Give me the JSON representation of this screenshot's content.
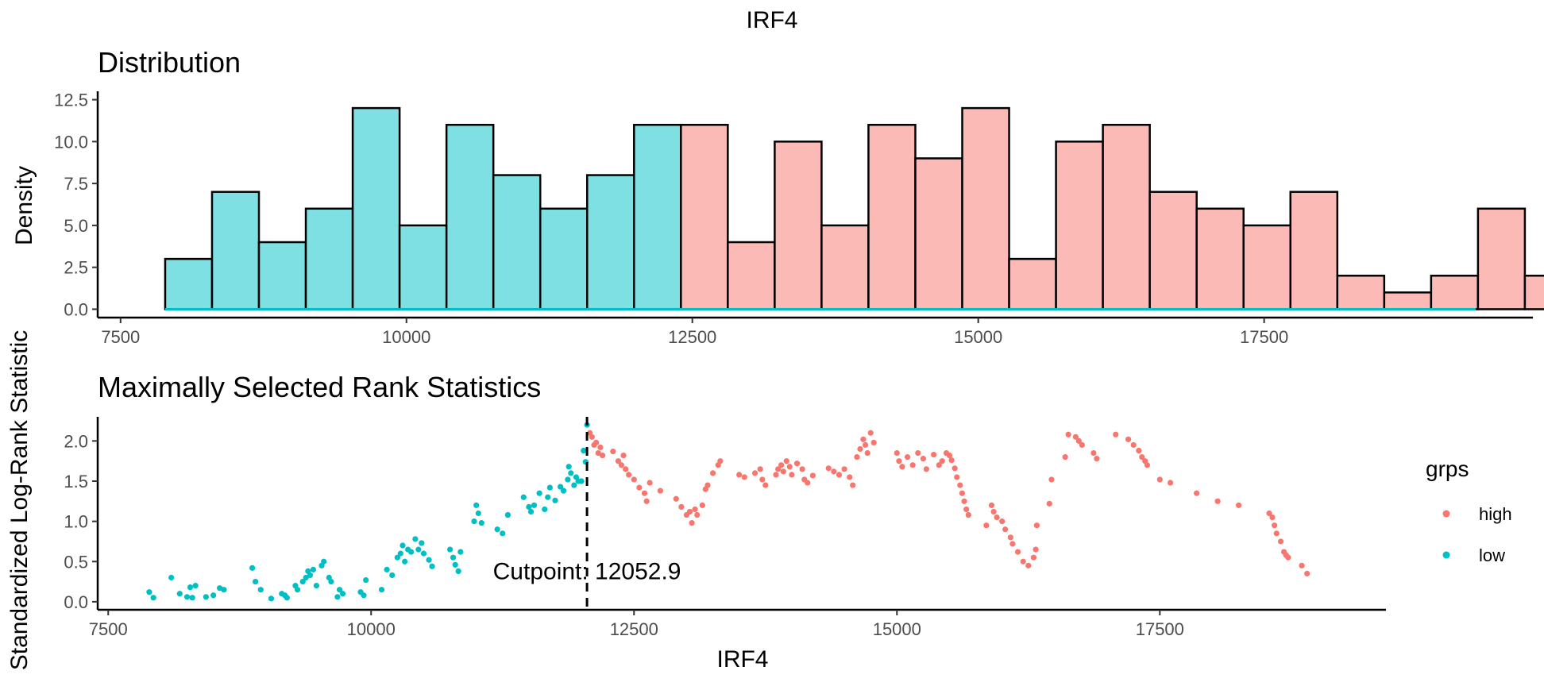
{
  "figure_title": "IRF4",
  "colors": {
    "low": "#00BFC4",
    "high": "#F8766D",
    "low_fill": "#7FE0E3",
    "high_fill": "#FBBAB5"
  },
  "chart_data": [
    {
      "type": "bar",
      "title": "Distribution",
      "xlabel": "",
      "ylabel": "Density",
      "xlim": [
        7300,
        19850
      ],
      "ylim": [
        -0.5,
        13.0
      ],
      "x_ticks": [
        7500,
        10000,
        12500,
        15000,
        17500
      ],
      "y_ticks": [
        0.0,
        2.5,
        5.0,
        7.5,
        10.0,
        12.5
      ],
      "x_tick_labels": [
        "7500",
        "10000",
        "12500",
        "15000",
        "17500"
      ],
      "y_tick_labels": [
        "0.0",
        "2.5",
        "5.0",
        "7.5",
        "10.0",
        "12.5"
      ],
      "bin_width": 410,
      "bins": [
        {
          "start": 7890,
          "value": 3,
          "group": "low"
        },
        {
          "start": 8300,
          "value": 7,
          "group": "low"
        },
        {
          "start": 8710,
          "value": 4,
          "group": "low"
        },
        {
          "start": 9120,
          "value": 6,
          "group": "low"
        },
        {
          "start": 9530,
          "value": 12,
          "group": "low"
        },
        {
          "start": 9940,
          "value": 5,
          "group": "low"
        },
        {
          "start": 10350,
          "value": 11,
          "group": "low"
        },
        {
          "start": 10760,
          "value": 8,
          "group": "low"
        },
        {
          "start": 11170,
          "value": 6,
          "group": "low"
        },
        {
          "start": 11580,
          "value": 8,
          "group": "low"
        },
        {
          "start": 11990,
          "value": 11,
          "group": "low"
        },
        {
          "start": 12400,
          "value": 11,
          "group": "high"
        },
        {
          "start": 12810,
          "value": 4,
          "group": "high"
        },
        {
          "start": 13220,
          "value": 10,
          "group": "high"
        },
        {
          "start": 13630,
          "value": 5,
          "group": "high"
        },
        {
          "start": 14040,
          "value": 11,
          "group": "high"
        },
        {
          "start": 14450,
          "value": 9,
          "group": "high"
        },
        {
          "start": 14860,
          "value": 12,
          "group": "high"
        },
        {
          "start": 15270,
          "value": 3,
          "group": "high"
        },
        {
          "start": 15680,
          "value": 10,
          "group": "high"
        },
        {
          "start": 16090,
          "value": 11,
          "group": "high"
        },
        {
          "start": 16500,
          "value": 7,
          "group": "high"
        },
        {
          "start": 16910,
          "value": 6,
          "group": "high"
        },
        {
          "start": 17320,
          "value": 5,
          "group": "high"
        },
        {
          "start": 17730,
          "value": 7,
          "group": "high"
        },
        {
          "start": 18140,
          "value": 2,
          "group": "high"
        },
        {
          "start": 18550,
          "value": 1,
          "group": "high"
        },
        {
          "start": 18960,
          "value": 2,
          "group": "high"
        },
        {
          "start": 19370,
          "value": 6,
          "group": "high"
        },
        {
          "start": 19780,
          "value": 2,
          "group": "high"
        }
      ],
      "baseline": {
        "from": 7890,
        "to": 19350
      }
    },
    {
      "type": "scatter",
      "title": "Maximally Selected Rank Statistics",
      "xlabel": "IRF4",
      "ylabel": "Standardized Log-Rank Statistic",
      "xlim": [
        7400,
        19650
      ],
      "ylim": [
        -0.1,
        2.3
      ],
      "x_ticks": [
        7500,
        10000,
        12500,
        15000,
        17500
      ],
      "y_ticks": [
        0.0,
        0.5,
        1.0,
        1.5,
        2.0
      ],
      "x_tick_labels": [
        "7500",
        "10000",
        "12500",
        "15000",
        "17500"
      ],
      "y_tick_labels": [
        "0.0",
        "0.5",
        "1.0",
        "1.5",
        "2.0"
      ],
      "cutpoint": 12052.9,
      "cutpoint_label": "Cutpoint: 12052.9",
      "legend": {
        "title": "grps",
        "entries": [
          {
            "name": "high",
            "group": "high"
          },
          {
            "name": "low",
            "group": "low"
          }
        ]
      },
      "series": [
        {
          "name": "low",
          "points": [
            [
              7890,
              0.12
            ],
            [
              7930,
              0.05
            ],
            [
              8100,
              0.3
            ],
            [
              8180,
              0.1
            ],
            [
              8250,
              0.06
            ],
            [
              8280,
              0.18
            ],
            [
              8300,
              0.05
            ],
            [
              8330,
              0.2
            ],
            [
              8430,
              0.06
            ],
            [
              8500,
              0.08
            ],
            [
              8560,
              0.17
            ],
            [
              8600,
              0.15
            ],
            [
              8870,
              0.42
            ],
            [
              8900,
              0.25
            ],
            [
              8950,
              0.15
            ],
            [
              9050,
              0.04
            ],
            [
              9150,
              0.1
            ],
            [
              9180,
              0.08
            ],
            [
              9200,
              0.05
            ],
            [
              9280,
              0.2
            ],
            [
              9300,
              0.15
            ],
            [
              9350,
              0.25
            ],
            [
              9380,
              0.3
            ],
            [
              9400,
              0.38
            ],
            [
              9420,
              0.33
            ],
            [
              9450,
              0.4
            ],
            [
              9480,
              0.2
            ],
            [
              9530,
              0.45
            ],
            [
              9550,
              0.5
            ],
            [
              9600,
              0.3
            ],
            [
              9620,
              0.25
            ],
            [
              9680,
              0.06
            ],
            [
              9700,
              0.15
            ],
            [
              9730,
              0.1
            ],
            [
              9900,
              0.12
            ],
            [
              9930,
              0.08
            ],
            [
              9950,
              0.27
            ],
            [
              10100,
              0.15
            ],
            [
              10150,
              0.4
            ],
            [
              10200,
              0.33
            ],
            [
              10250,
              0.55
            ],
            [
              10280,
              0.6
            ],
            [
              10300,
              0.7
            ],
            [
              10320,
              0.5
            ],
            [
              10350,
              0.65
            ],
            [
              10380,
              0.62
            ],
            [
              10420,
              0.78
            ],
            [
              10450,
              0.65
            ],
            [
              10480,
              0.73
            ],
            [
              10500,
              0.6
            ],
            [
              10550,
              0.52
            ],
            [
              10580,
              0.44
            ],
            [
              10750,
              0.65
            ],
            [
              10780,
              0.55
            ],
            [
              10800,
              0.46
            ],
            [
              10830,
              0.38
            ],
            [
              10850,
              0.62
            ],
            [
              10980,
              1.0
            ],
            [
              11000,
              1.2
            ],
            [
              11020,
              1.1
            ],
            [
              11050,
              0.98
            ],
            [
              11200,
              0.9
            ],
            [
              11250,
              0.85
            ],
            [
              11300,
              1.08
            ],
            [
              11450,
              1.3
            ],
            [
              11500,
              1.18
            ],
            [
              11520,
              1.12
            ],
            [
              11550,
              1.2
            ],
            [
              11600,
              1.35
            ],
            [
              11650,
              1.15
            ],
            [
              11680,
              1.3
            ],
            [
              11700,
              1.42
            ],
            [
              11750,
              1.26
            ],
            [
              11800,
              1.43
            ],
            [
              11830,
              1.38
            ],
            [
              11870,
              1.52
            ],
            [
              11880,
              1.68
            ],
            [
              11900,
              1.6
            ],
            [
              11930,
              1.45
            ],
            [
              11950,
              1.55
            ],
            [
              11970,
              1.5
            ],
            [
              12000,
              1.5
            ],
            [
              12020,
              1.88
            ],
            [
              12040,
              1.74
            ],
            [
              12052.9,
              2.2
            ]
          ]
        },
        {
          "name": "high",
          "points": [
            [
              12080,
              2.1
            ],
            [
              12100,
              2.05
            ],
            [
              12120,
              1.95
            ],
            [
              12140,
              1.98
            ],
            [
              12160,
              1.85
            ],
            [
              12180,
              1.92
            ],
            [
              12200,
              1.82
            ],
            [
              12300,
              1.87
            ],
            [
              12350,
              1.75
            ],
            [
              12380,
              1.7
            ],
            [
              12400,
              1.82
            ],
            [
              12420,
              1.65
            ],
            [
              12450,
              1.58
            ],
            [
              12500,
              1.52
            ],
            [
              12550,
              1.42
            ],
            [
              12600,
              1.35
            ],
            [
              12620,
              1.25
            ],
            [
              12650,
              1.48
            ],
            [
              12750,
              1.38
            ],
            [
              12900,
              1.28
            ],
            [
              12950,
              1.18
            ],
            [
              13000,
              1.08
            ],
            [
              13030,
              1.12
            ],
            [
              13050,
              0.98
            ],
            [
              13080,
              1.15
            ],
            [
              13100,
              1.08
            ],
            [
              13150,
              1.2
            ],
            [
              13180,
              1.4
            ],
            [
              13200,
              1.45
            ],
            [
              13250,
              1.6
            ],
            [
              13300,
              1.7
            ],
            [
              13320,
              1.75
            ],
            [
              13500,
              1.58
            ],
            [
              13550,
              1.55
            ],
            [
              13650,
              1.6
            ],
            [
              13700,
              1.65
            ],
            [
              13720,
              1.52
            ],
            [
              13750,
              1.45
            ],
            [
              13850,
              1.58
            ],
            [
              13870,
              1.65
            ],
            [
              13900,
              1.7
            ],
            [
              13920,
              1.62
            ],
            [
              13950,
              1.75
            ],
            [
              13980,
              1.68
            ],
            [
              14000,
              1.58
            ],
            [
              14050,
              1.72
            ],
            [
              14100,
              1.65
            ],
            [
              14120,
              1.52
            ],
            [
              14150,
              1.48
            ],
            [
              14200,
              1.57
            ],
            [
              14350,
              1.66
            ],
            [
              14400,
              1.62
            ],
            [
              14450,
              1.58
            ],
            [
              14500,
              1.65
            ],
            [
              14550,
              1.55
            ],
            [
              14580,
              1.45
            ],
            [
              14620,
              1.8
            ],
            [
              14650,
              1.9
            ],
            [
              14680,
              2.02
            ],
            [
              14700,
              1.95
            ],
            [
              14720,
              1.85
            ],
            [
              14750,
              2.1
            ],
            [
              14780,
              1.98
            ],
            [
              15000,
              1.85
            ],
            [
              15020,
              1.75
            ],
            [
              15050,
              1.68
            ],
            [
              15100,
              1.8
            ],
            [
              15150,
              1.7
            ],
            [
              15200,
              1.85
            ],
            [
              15250,
              1.78
            ],
            [
              15280,
              1.65
            ],
            [
              15350,
              1.83
            ],
            [
              15400,
              1.7
            ],
            [
              15430,
              1.75
            ],
            [
              15470,
              1.85
            ],
            [
              15500,
              1.82
            ],
            [
              15520,
              1.76
            ],
            [
              15550,
              1.66
            ],
            [
              15570,
              1.55
            ],
            [
              15600,
              1.45
            ],
            [
              15620,
              1.35
            ],
            [
              15640,
              1.25
            ],
            [
              15660,
              1.15
            ],
            [
              15680,
              1.08
            ],
            [
              15850,
              0.95
            ],
            [
              15900,
              1.2
            ],
            [
              15920,
              1.12
            ],
            [
              15950,
              1.05
            ],
            [
              16000,
              1.0
            ],
            [
              16030,
              0.9
            ],
            [
              16080,
              0.8
            ],
            [
              16100,
              0.72
            ],
            [
              16150,
              0.62
            ],
            [
              16200,
              0.5
            ],
            [
              16250,
              0.45
            ],
            [
              16300,
              0.55
            ],
            [
              16320,
              0.65
            ],
            [
              16330,
              0.95
            ],
            [
              16450,
              1.22
            ],
            [
              16470,
              1.52
            ],
            [
              16600,
              1.8
            ],
            [
              16630,
              2.08
            ],
            [
              16700,
              2.05
            ],
            [
              16730,
              2.0
            ],
            [
              16760,
              1.95
            ],
            [
              16870,
              1.85
            ],
            [
              16900,
              1.78
            ],
            [
              17080,
              2.08
            ],
            [
              17200,
              2.02
            ],
            [
              17250,
              1.95
            ],
            [
              17300,
              1.88
            ],
            [
              17330,
              1.8
            ],
            [
              17360,
              1.75
            ],
            [
              17380,
              1.7
            ],
            [
              17500,
              1.52
            ],
            [
              17600,
              1.48
            ],
            [
              17850,
              1.35
            ],
            [
              18050,
              1.25
            ],
            [
              18250,
              1.2
            ],
            [
              18540,
              1.1
            ],
            [
              18570,
              1.05
            ],
            [
              18590,
              0.95
            ],
            [
              18610,
              0.85
            ],
            [
              18650,
              0.75
            ],
            [
              18680,
              0.62
            ],
            [
              18700,
              0.58
            ],
            [
              18720,
              0.55
            ],
            [
              18850,
              0.45
            ],
            [
              18900,
              0.35
            ]
          ]
        }
      ]
    }
  ]
}
